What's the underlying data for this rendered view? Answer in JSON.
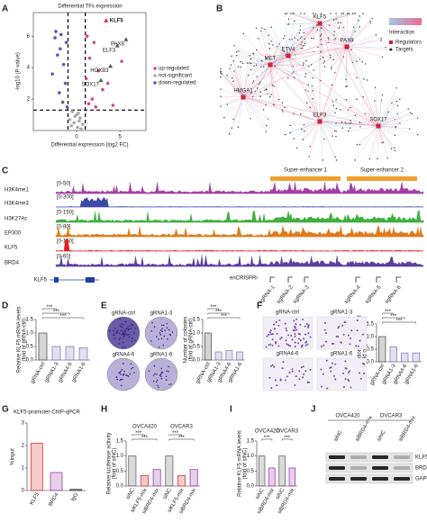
{
  "panel_labels": [
    "A",
    "B",
    "C",
    "D",
    "E",
    "F",
    "G",
    "H",
    "I",
    "J"
  ],
  "volcano": {
    "title": "Differential TFs expression",
    "ylabel": "-log10 (P-value)",
    "xlabel": "Differential expression (log2 FC)",
    "xlim": [
      -5,
      8
    ],
    "ylim": [
      0,
      7.5
    ],
    "xticks": [
      0,
      5
    ],
    "yticks": [
      2,
      4,
      6
    ],
    "xthresholds": [
      -1,
      1
    ],
    "ythreshold": 1.3,
    "legend": [
      {
        "name": "up-regulated",
        "color": "#d6449a"
      },
      {
        "name": "not-significant",
        "color": "#aaaaaa"
      },
      {
        "name": "down-regulated",
        "color": "#5a5ab0"
      }
    ],
    "points": {
      "up": [
        [
          1.2,
          6.0
        ],
        [
          2.0,
          5.6
        ],
        [
          1.5,
          4.6
        ],
        [
          2.5,
          3.8
        ],
        [
          3.0,
          2.6
        ],
        [
          1.8,
          2.0
        ],
        [
          4.2,
          1.6
        ],
        [
          2.2,
          1.5
        ],
        [
          1.1,
          3.3
        ],
        [
          5.2,
          4.4
        ],
        [
          1.4,
          1.7
        ],
        [
          3.6,
          3.0
        ]
      ],
      "ns": [
        [
          0.1,
          0.2
        ],
        [
          -0.3,
          0.5
        ],
        [
          0.4,
          0.8
        ],
        [
          -0.6,
          0.3
        ],
        [
          0.2,
          1.1
        ],
        [
          0.7,
          0.4
        ],
        [
          -0.2,
          0.9
        ],
        [
          0.5,
          0.1
        ],
        [
          -0.5,
          1.2
        ],
        [
          0.3,
          0.6
        ],
        [
          0.0,
          1.0
        ],
        [
          -0.8,
          0.7
        ]
      ],
      "down": [
        [
          -2.5,
          5.9
        ],
        [
          -1.8,
          6.1
        ],
        [
          -1.2,
          5.6
        ],
        [
          -2.2,
          4.8
        ],
        [
          -1.5,
          4.2
        ],
        [
          -2.8,
          3.6
        ],
        [
          -1.3,
          3.0
        ],
        [
          -2.0,
          2.4
        ],
        [
          -1.6,
          1.8
        ],
        [
          -1.1,
          1.5
        ],
        [
          -2.4,
          6.3
        ],
        [
          -1.9,
          5.2
        ]
      ]
    },
    "labeled": [
      {
        "label": "KLF5",
        "x": 3.4,
        "y": 7.0
      },
      {
        "label": "PAX8",
        "x": 5.7,
        "y": 5.8
      },
      {
        "label": "ELF3",
        "x": 4.7,
        "y": 5.4
      },
      {
        "label": "HOXB3",
        "x": 3.9,
        "y": 4.1
      },
      {
        "label": "SOX17",
        "x": 2.8,
        "y": 3.2
      }
    ]
  },
  "network": {
    "nodes": [
      "MET",
      "KLF5",
      "ETV4",
      "PAX8",
      "HMGA1",
      "ELF3",
      "SOX17"
    ],
    "legend_title": "Interaction",
    "legend": [
      "Regulators",
      "Targets"
    ]
  },
  "tracks": {
    "rows": [
      {
        "name": "H3K4me1",
        "range": "[0-50]",
        "color": "#a23fa6"
      },
      {
        "name": "H3K4me3",
        "range": "[0-300]",
        "color": "#3b4aa8"
      },
      {
        "name": "H3K27Ac",
        "range": "[0-150]",
        "color": "#3fae3f"
      },
      {
        "name": "EP300",
        "range": "[0-80]",
        "color": "#e07a1a"
      },
      {
        "name": "KLF5",
        "range": "[0-150]",
        "color": "#e02020"
      },
      {
        "name": "BRD4",
        "range": "[0-60]",
        "color": "#5a3fa0"
      }
    ],
    "super_enhancers": [
      "Super-enhancer 1",
      "Super-enhancer 2"
    ],
    "crispr": "enCRISPRi",
    "sgrnas": [
      "sgRNA-1",
      "sgRNA-2",
      "sgRNA-3",
      "sgRNA-4",
      "sgRNA-5",
      "sgRNA-6"
    ],
    "gene": "KLF5"
  },
  "panel_d": {
    "ylabel": [
      "Relative KLF5 mRNA levels",
      "(fold of gRNA-ctrl)"
    ],
    "ylim": [
      0,
      1.5
    ],
    "yticks": [
      {
        "value": 0,
        "label": "0.0"
      },
      0.5,
      {
        "value": 1,
        "label": "1.0"
      },
      1.5
    ],
    "categories": [
      "gRNA-ctrl",
      "gRNA1-3",
      "gRNA4-6",
      "gRNA1-6"
    ],
    "values": [
      1.0,
      0.5,
      0.5,
      0.45
    ],
    "colors": [
      "#555555",
      "#8a7fc0",
      "#8a7fc0",
      "#8a7fc0"
    ],
    "sig": [
      "***",
      "***",
      "***"
    ]
  },
  "panel_e": {
    "images": [
      "gRNA-ctrl",
      "gRNA1-3",
      "gRNA4-6",
      "gRNA1-6"
    ],
    "ylabel": [
      "Number of colonies",
      "(fold of gRNA-ctrl)"
    ],
    "ylim": [
      0,
      1.5
    ],
    "yticks": [
      {
        "value": 0,
        "label": "0.0"
      },
      0.5,
      {
        "value": 1,
        "label": "1.0"
      },
      1.5
    ],
    "categories": [
      "gRNA-ctrl",
      "gRNA1-3",
      "gRNA4-6",
      "gRNA1-6"
    ],
    "values": [
      1.0,
      0.3,
      0.35,
      0.3
    ],
    "colors": [
      "#555555",
      "#8a7fc0",
      "#8a7fc0",
      "#8a7fc0"
    ],
    "sig": [
      "***",
      "***",
      "***"
    ]
  },
  "panel_f": {
    "images": [
      "gRNA-ctrl",
      "gRNA1-3",
      "gRNA4-6",
      "gRNA1-6"
    ],
    "ylabel": [
      "Migration cells per field",
      "(fold of gRNA-ctrl)"
    ],
    "ylim": [
      0,
      1.5
    ],
    "yticks": [
      {
        "value": 0,
        "label": "0.0"
      },
      0.5,
      {
        "value": 1,
        "label": "1.0"
      },
      1.5
    ],
    "categories": [
      "gRNA-ctrl",
      "gRNA1-3",
      "gRNA4-6",
      "gRNA1-6"
    ],
    "values": [
      1.0,
      0.6,
      0.35,
      0.35
    ],
    "colors": [
      "#555555",
      "#8a7fc0",
      "#8a7fc0",
      "#8a7fc0"
    ],
    "sig": [
      "***",
      "***",
      "***"
    ]
  },
  "panel_g": {
    "title": "KLF5-promoter-ChIP-qPCR",
    "ylabel": [
      "%Input"
    ],
    "ylim": [
      0,
      3
    ],
    "yticks": [
      0,
      1,
      2,
      3
    ],
    "categories": [
      "KLF5",
      "BRD4",
      "IgG"
    ],
    "values": [
      2.1,
      0.8,
      0.05
    ],
    "colors": [
      "#e03030",
      "#9a3fa6",
      "#333333"
    ],
    "sig": []
  },
  "panel_h": {
    "groups": [
      "OVCA420",
      "OVCAR3"
    ],
    "ylabel": [
      "Relative luciferase activity",
      "(fold of siNC)"
    ],
    "ylim": [
      0,
      1.5
    ],
    "yticks": [
      {
        "value": 0,
        "label": "0.0"
      },
      0.5,
      {
        "value": 1,
        "label": "1.0"
      },
      1.5
    ],
    "categories": [
      "siNC",
      "siKLF5-mix",
      "siBRD4-mix",
      "siNC",
      "siKLF5-mix",
      "siBRD4-mix"
    ],
    "values": [
      1.0,
      0.35,
      0.55,
      1.0,
      0.35,
      0.55
    ],
    "colors": [
      "#666666",
      "#e03030",
      "#9a3fa6",
      "#666666",
      "#e03030",
      "#9a3fa6"
    ],
    "sig": [
      "***",
      "***",
      "***",
      "***"
    ]
  },
  "panel_i": {
    "groups": [
      "OVCA420",
      "OVCAR3"
    ],
    "ylabel": [
      "Relative KLF5 mRNA levels",
      "(fold of siNC)"
    ],
    "ylim": [
      0,
      1.5
    ],
    "yticks": [
      {
        "value": 0,
        "label": "0.0"
      },
      0.5,
      {
        "value": 1,
        "label": "1.0"
      },
      1.5
    ],
    "categories": [
      "siNC",
      "siBRD4-mix",
      "siNC",
      "siBRD4-mix"
    ],
    "values": [
      1.0,
      0.6,
      1.0,
      0.6
    ],
    "colors": [
      "#666666",
      "#9a3fa6",
      "#666666",
      "#9a3fa6"
    ],
    "sig": [
      "***",
      "***"
    ]
  },
  "panel_j": {
    "groups": [
      "OVCA420",
      "OVCAR3"
    ],
    "lanes": [
      "siNC",
      "siBRD4-mix",
      "siNC",
      "siBRD4-mix"
    ],
    "bands": [
      "KLF5",
      "BRD4",
      "GAPDH"
    ]
  }
}
